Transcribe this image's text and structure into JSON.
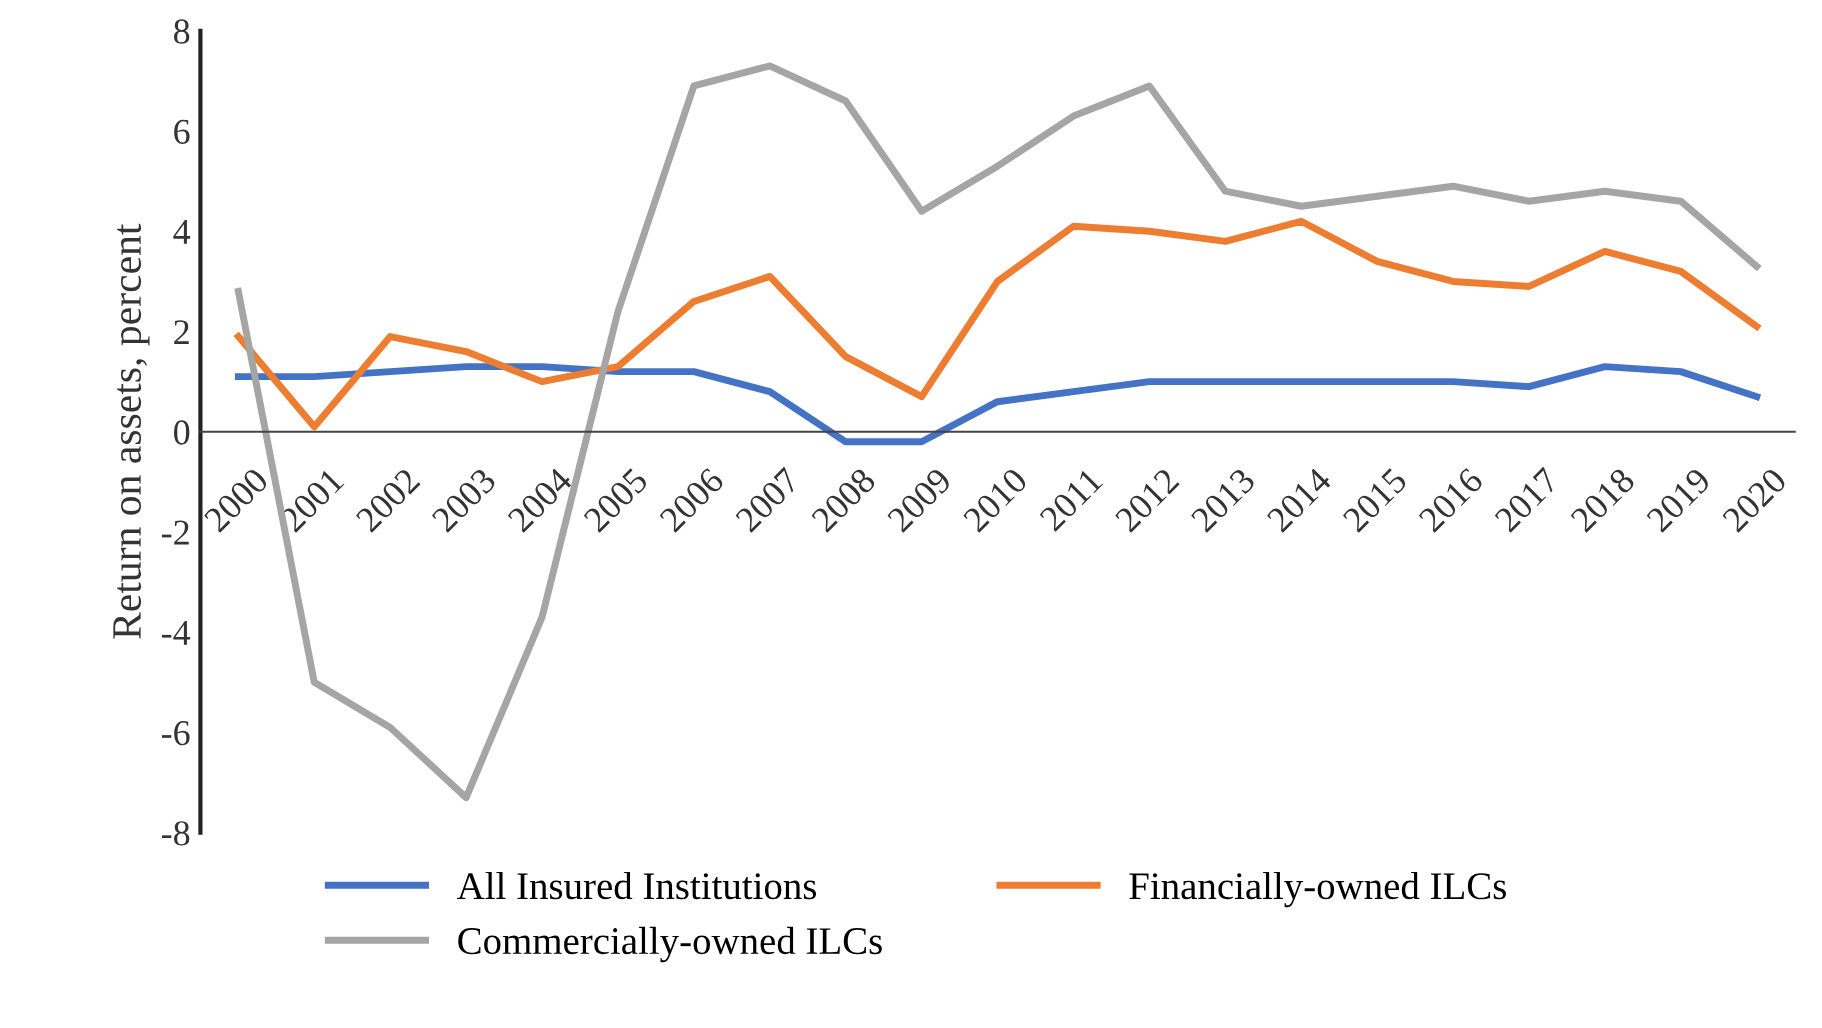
{
  "chart_data": {
    "type": "line",
    "ylabel": "Return on assets, percent",
    "categories": [
      "2000",
      "2001",
      "2002",
      "2003",
      "2004",
      "2005",
      "2006",
      "2007",
      "2008",
      "2009",
      "2010",
      "2011",
      "2012",
      "2013",
      "2014",
      "2015",
      "2016",
      "2017",
      "2018",
      "2019",
      "2020"
    ],
    "series": [
      {
        "name": "All Insured Institutions",
        "color": "#4472c4",
        "values": [
          1.1,
          1.1,
          1.2,
          1.3,
          1.3,
          1.2,
          1.2,
          0.8,
          -0.2,
          -0.2,
          0.6,
          0.8,
          1.0,
          1.0,
          1.0,
          1.0,
          1.0,
          0.9,
          1.3,
          1.2,
          0.7
        ]
      },
      {
        "name": "Financially-owned ILCs",
        "color": "#ed7d31",
        "values": [
          1.9,
          0.1,
          1.9,
          1.6,
          1.0,
          1.3,
          2.6,
          3.1,
          1.5,
          0.7,
          3.0,
          4.1,
          4.0,
          3.8,
          4.2,
          3.4,
          3.0,
          2.9,
          3.6,
          3.2,
          2.1
        ]
      },
      {
        "name": "Commercially-owned ILCs",
        "color": "#a5a5a5",
        "values": [
          2.8,
          -5.0,
          -5.9,
          -7.3,
          -3.7,
          2.4,
          6.9,
          7.3,
          6.6,
          4.4,
          5.3,
          6.3,
          6.9,
          4.8,
          4.5,
          4.7,
          4.9,
          4.6,
          4.8,
          4.6,
          3.3
        ]
      }
    ],
    "ylim": [
      -8,
      8
    ],
    "yticks": [
      -8,
      -6,
      -4,
      -2,
      0,
      2,
      4,
      6,
      8
    ],
    "grid": false,
    "legend": "bottom",
    "marker": "none",
    "line_style": "solid"
  }
}
